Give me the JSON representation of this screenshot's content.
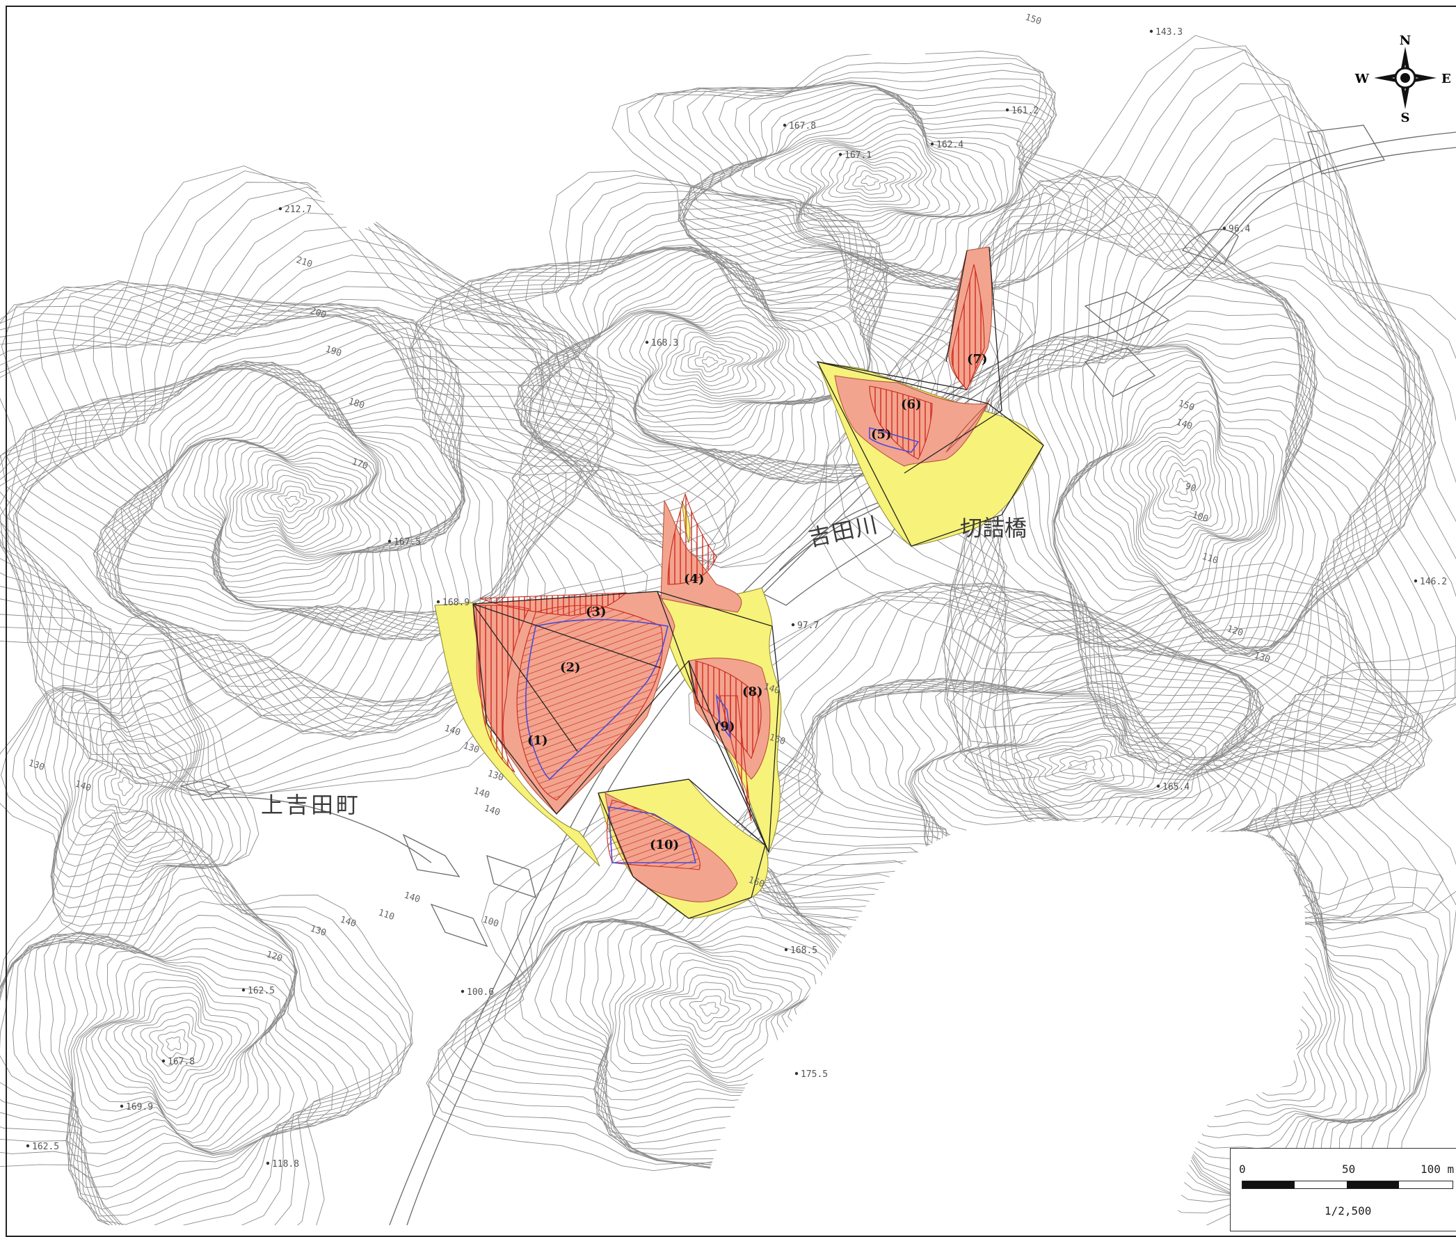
{
  "map": {
    "places": {
      "kamiyoshida": "上吉田町",
      "river": "吉田川",
      "bridge": "切詰橋"
    },
    "compass": {
      "n": "N",
      "s": "S",
      "e": "E",
      "w": "W"
    },
    "zones": [
      "(1)",
      "(2)",
      "(3)",
      "(4)",
      "(5)",
      "(6)",
      "(7)",
      "(8)",
      "(9)",
      "(10)"
    ],
    "spot_heights": [
      "143.3",
      "167.8",
      "167.1",
      "161.2",
      "162.4",
      "212.7",
      "168.3",
      "96.4",
      "167.5",
      "168.9",
      "97.7",
      "146.2",
      "165.4",
      "168.5",
      "162.5",
      "100.6",
      "167.8",
      "169.9",
      "162.5",
      "118.8",
      "175.5"
    ],
    "contour_labels": [
      "150",
      "210",
      "200",
      "190",
      "180",
      "170",
      "130",
      "140",
      "150",
      "140",
      "90",
      "100",
      "110",
      "120",
      "130",
      "140",
      "160",
      "140",
      "140",
      "130",
      "120",
      "110",
      "160",
      "100",
      "140",
      "130",
      "130",
      "140",
      "140"
    ],
    "scale": {
      "zero": "0",
      "mid": "50",
      "max": "100 m",
      "ratio": "1/2,500"
    },
    "colors": {
      "yellow_zone": "#f6f27a",
      "orange_zone": "#f2a48e",
      "red_hatch": "#d42a1e",
      "blue_outline": "#4a4ad8",
      "contour": "#8c8c8c"
    }
  }
}
